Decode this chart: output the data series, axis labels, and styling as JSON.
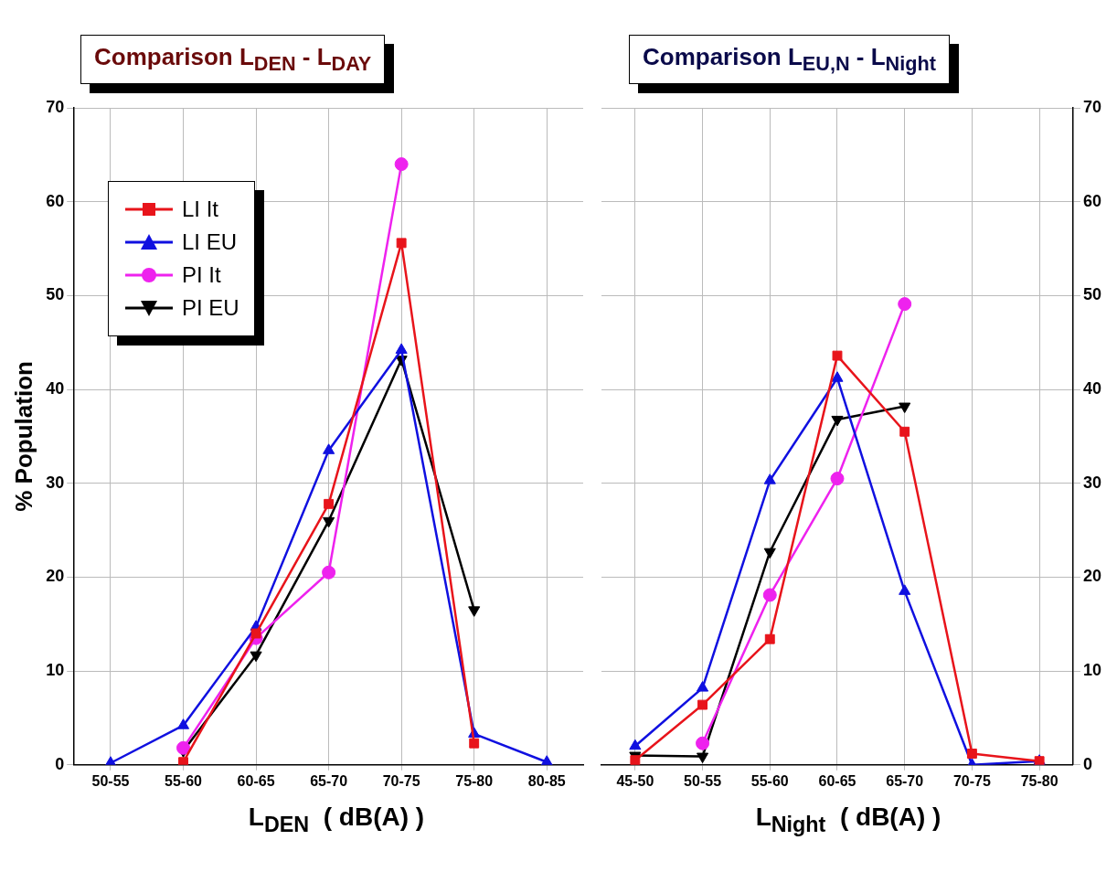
{
  "chart_data": [
    {
      "type": "line",
      "title": "Comparison L$_{DEN}$ - L$_{DAY}$",
      "xlabel": "L$_{DEN}$  ( dB(A) )",
      "ylabel": "% Population",
      "categories": [
        "50-55",
        "55-60",
        "60-65",
        "65-70",
        "70-75",
        "75-80",
        "80-85"
      ],
      "series": [
        {
          "name": "LI It",
          "color": "#e8141b",
          "marker": "square",
          "values": [
            null,
            0.3,
            14,
            27.8,
            55.6,
            2.3,
            null
          ]
        },
        {
          "name": "LI EU",
          "color": "#1010e0",
          "marker": "triangle",
          "values": [
            0.2,
            4.2,
            14.7,
            33.5,
            44.2,
            3.3,
            0.3
          ]
        },
        {
          "name": "PI It",
          "color": "#ee22ee",
          "marker": "circle",
          "values": [
            null,
            1.8,
            13.5,
            20.5,
            64,
            null,
            null
          ]
        },
        {
          "name": "PI EU",
          "color": "#000000",
          "marker": "triangle-down",
          "values": [
            null,
            1.5,
            11.7,
            26,
            43.2,
            16.5,
            null
          ]
        }
      ],
      "ylim": [
        0,
        70
      ],
      "yticks": [
        0,
        10,
        20,
        30,
        40,
        50,
        60,
        70
      ],
      "grid": true,
      "legend": "top left"
    },
    {
      "type": "line",
      "title": "Comparison L$_{EU,N}$ - L$_{Night}$",
      "xlabel": "L$_{Night}$  ( dB(A) )",
      "categories": [
        "45-50",
        "50-55",
        "55-60",
        "60-65",
        "65-70",
        "70-75",
        "75-80"
      ],
      "series": [
        {
          "color": "#e8141b",
          "marker": "square",
          "values": [
            0.5,
            6.4,
            13.4,
            43.6,
            35.5,
            1.2,
            0.4
          ]
        },
        {
          "color": "#1010e0",
          "marker": "triangle",
          "values": [
            2,
            8.2,
            30.3,
            41.2,
            18.5,
            0,
            0.4
          ]
        },
        {
          "color": "#ee22ee",
          "marker": "circle",
          "values": [
            null,
            2.3,
            18.1,
            30.5,
            49.1,
            null,
            null
          ]
        },
        {
          "color": "#000000",
          "marker": "triangle-down",
          "values": [
            1,
            0.9,
            22.7,
            36.8,
            38.2,
            null,
            null
          ]
        }
      ],
      "ylim": [
        0,
        70
      ],
      "yticks": [
        0,
        10,
        20,
        30,
        40,
        50,
        60,
        70
      ],
      "grid": true
    }
  ]
}
